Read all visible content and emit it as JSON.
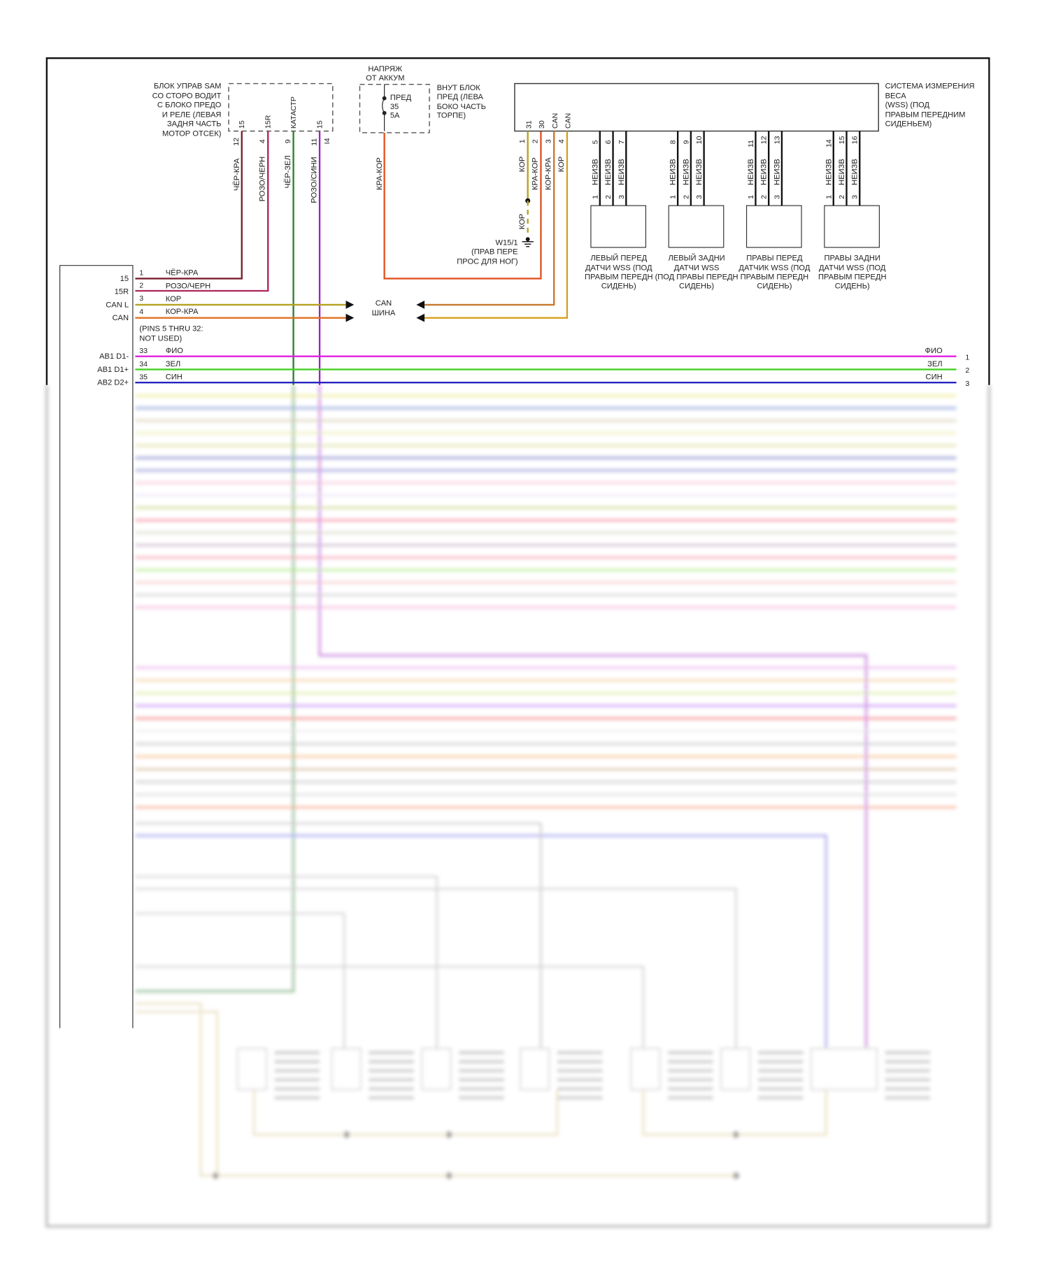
{
  "sam": {
    "label": [
      "БЛОК УПРАВ SAM",
      "СО СТОРО ВОДИТ",
      "С БЛОКО ПРЕДО",
      "И РЕЛЕ (ЛЕВАЯ",
      "ЗАДНЯ ЧАСТЬ",
      "МОТОР ОТСЕК)"
    ],
    "pins": [
      "15",
      "15R",
      "КАТАСТР",
      "15"
    ],
    "wire_pins": [
      "12",
      "4",
      "9",
      "11",
      "I4"
    ],
    "wires": [
      "ЧЁР-КРА",
      "РОЗО/ЧЕРН",
      "ЧЁР-ЗЕЛ",
      "РОЗО/СИНИ"
    ]
  },
  "fuse": {
    "title": [
      "НАПРЯЖ",
      "ОТ АККУМ"
    ],
    "inner": [
      "ПРЕД",
      "35",
      "5A"
    ],
    "label": [
      "ВНУТ БЛОК",
      "ПРЕД (ЛЕВА",
      "БОКО ЧАСТЬ",
      "ТОРПЕ)"
    ],
    "wire": "КРА-КОР"
  },
  "wss": {
    "label": [
      "СИСТЕМА ИЗМЕРЕНИЯ",
      "ВЕСА",
      "(WSS) (ПОД",
      "ПРАВЫМ ПЕРЕДНИМ",
      "СИДЕНЬЕМ)"
    ],
    "pins": [
      "31",
      "30",
      "CAN",
      "CAN"
    ],
    "wire_pins": [
      "1",
      "2",
      "3",
      "4"
    ],
    "wires": [
      "КОР",
      "КРА-КОР",
      "КОР-КРА",
      "КОР"
    ],
    "ground_wire": "КОР",
    "ground_label": [
      "W15/1",
      "(ПРАВ ПЕРЕ",
      "ПРОС ДЛЯ НОГ)"
    ]
  },
  "sensors": [
    {
      "top_pins": [
        "5",
        "6",
        "7"
      ],
      "wire": "НЕИЗВ",
      "bottom_pins": [
        "1",
        "2",
        "3"
      ],
      "label": [
        "ЛЕВЫЙ ПЕРЕД",
        "ДАТЧИ WSS (ПОД",
        "ПРАВЫМ ПЕРЕДН",
        "СИДЕНЬ)"
      ]
    },
    {
      "top_pins": [
        "8",
        "9",
        "10"
      ],
      "wire": "НЕИЗВ",
      "bottom_pins": [
        "1",
        "2",
        "3"
      ],
      "label": [
        "ЛЕВЫЙ ЗАДНИ",
        "ДАТЧИ WSS",
        "(ПОД ПРАВЫ ПЕРЕДН",
        "СИДЕНЬ)"
      ]
    },
    {
      "top_pins": [
        "11",
        "12",
        "13"
      ],
      "wire": "НЕИЗВ",
      "bottom_pins": [
        "1",
        "2",
        "3"
      ],
      "label": [
        "ПРАВЫ ПЕРЕД",
        "ДАТЧИК WSS (ПОД",
        "ПРАВЫМ ПЕРЕДН",
        "СИДЕНЬ)"
      ]
    },
    {
      "top_pins": [
        "14",
        "15",
        "16"
      ],
      "wire": "НЕИЗВ",
      "bottom_pins": [
        "1",
        "2",
        "3"
      ],
      "label": [
        "ПРАВЫ ЗАДНИ",
        "ДАТЧИ WSS (ПОД",
        "ПРАВЫМ ПЕРЕДН",
        "СИДЕНЬ)"
      ]
    }
  ],
  "connector": {
    "pins": [
      {
        "name": "15",
        "num": "1",
        "wire": "ЧЁР-КРА"
      },
      {
        "name": "15R",
        "num": "2",
        "wire": "РОЗО/ЧЕРН"
      },
      {
        "name": "CAN L",
        "num": "3",
        "wire": "КОР"
      },
      {
        "name": "CAN",
        "num": "4",
        "wire": "КОР-КРА"
      }
    ],
    "not_used": [
      "(PINS 5 THRU 32:",
      "NOT USED)"
    ],
    "bus": [
      {
        "name": "AB1 D1-",
        "num": "33",
        "wire": "ФИО",
        "right_num": "1",
        "color": "#e020e0"
      },
      {
        "name": "AB1 D1+",
        "num": "34",
        "wire": "ЗЕЛ",
        "right_num": "2",
        "color": "#44d024"
      },
      {
        "name": "AB2 D2+",
        "num": "35",
        "wire": "СИН",
        "right_num": "3",
        "color": "#2424c0"
      }
    ]
  },
  "can_bus": [
    "CAN",
    "ШИНА"
  ],
  "colors": {
    "cher_kra": "#7a1f2e",
    "rozo_chern": "#b0245a",
    "cher_zel": "#2e7d32",
    "rozo_sini": "#a020c0",
    "kra_kor": "#e0521e",
    "kor": "#b5a020",
    "kor_kra": "#c8782e",
    "kor2": "#d4a020"
  }
}
